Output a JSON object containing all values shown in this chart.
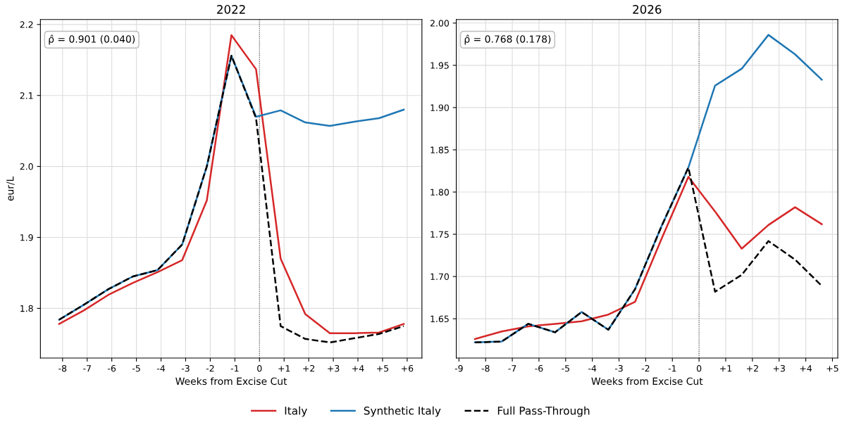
{
  "chart_data": [
    {
      "type": "line",
      "title": "2022",
      "xlabel": "Weeks from Excise Cut",
      "ylabel": "eur/L",
      "annotations": [
        "ρ̂ = 0.901 (0.040)"
      ],
      "xlim": [
        -8.9,
        6.6
      ],
      "ylim": [
        1.73,
        2.207
      ],
      "xticks": [
        -8,
        -7,
        -6,
        -5,
        -4,
        -3,
        -2,
        -1,
        0,
        {
          "value": 1,
          "label": "+1"
        },
        {
          "value": 2,
          "label": "+2"
        },
        {
          "value": 3,
          "label": "+3"
        },
        {
          "value": 4,
          "label": "+4"
        },
        {
          "value": 5,
          "label": "+5"
        },
        {
          "value": 6,
          "label": "+6"
        }
      ],
      "yticks": [
        1.8,
        1.9,
        {
          "value": 2.0,
          "label": "2.0"
        },
        2.1,
        2.2
      ],
      "grid": true,
      "legend": "bottom",
      "ref_lines": [
        {
          "axis": "x",
          "value": 0,
          "color": "#555555",
          "line_style": "dotted"
        }
      ],
      "x": [
        -8.14,
        -7.14,
        -6.14,
        -5.14,
        -4.14,
        -3.14,
        -2.14,
        -1.14,
        -0.14,
        0.86,
        1.86,
        2.86,
        3.86,
        4.86,
        5.86
      ],
      "series": [
        {
          "name": "Italy",
          "color": "#d62728",
          "line_style": "solid",
          "values": [
            1.778,
            1.797,
            1.819,
            1.836,
            1.851,
            1.868,
            1.952,
            2.185,
            2.137,
            1.87,
            1.792,
            1.765,
            1.765,
            1.766,
            1.778
          ]
        },
        {
          "name": "Synthetic Italy",
          "color": "#1f77b4",
          "line_style": "solid",
          "values": [
            1.784,
            1.805,
            1.827,
            1.845,
            1.854,
            1.89,
            2.0,
            2.156,
            2.07,
            2.079,
            2.062,
            2.057,
            2.063,
            2.068,
            2.08
          ]
        },
        {
          "name": "Full Pass-Through",
          "color": "#000000",
          "line_style": "dashed",
          "values": [
            1.784,
            1.805,
            1.827,
            1.845,
            1.854,
            1.89,
            2.0,
            2.156,
            2.068,
            1.775,
            1.757,
            1.752,
            1.758,
            1.764,
            1.775
          ]
        }
      ]
    },
    {
      "type": "line",
      "title": "2026",
      "xlabel": "Weeks from Excise Cut",
      "annotations": [
        "ρ̂ = 0.768 (0.178)"
      ],
      "xlim": [
        -9.1,
        5.2
      ],
      "ylim": [
        1.6035,
        2.0042
      ],
      "xticks": [
        -9,
        -8,
        -7,
        -6,
        -5,
        -4,
        -3,
        -2,
        -1,
        0,
        {
          "value": 1,
          "label": "+1"
        },
        {
          "value": 2,
          "label": "+2"
        },
        {
          "value": 3,
          "label": "+3"
        },
        {
          "value": 4,
          "label": "+4"
        },
        {
          "value": 5,
          "label": "+5"
        }
      ],
      "yticks": [
        {
          "value": 1.65,
          "label": "1.65"
        },
        {
          "value": 1.7,
          "label": "1.70"
        },
        {
          "value": 1.75,
          "label": "1.75"
        },
        {
          "value": 1.8,
          "label": "1.80"
        },
        {
          "value": 1.85,
          "label": "1.85"
        },
        {
          "value": 1.9,
          "label": "1.90"
        },
        {
          "value": 1.95,
          "label": "1.95"
        },
        {
          "value": 2.0,
          "label": "2.00"
        }
      ],
      "grid": true,
      "legend": "bottom",
      "ref_lines": [
        {
          "axis": "x",
          "value": 0,
          "color": "#555555",
          "line_style": "dotted"
        }
      ],
      "x": [
        -8.4,
        -7.4,
        -6.4,
        -5.4,
        -4.4,
        -3.4,
        -2.4,
        -1.4,
        -0.4,
        0.6,
        1.6,
        2.6,
        3.6,
        4.6
      ],
      "series": [
        {
          "name": "Italy",
          "color": "#d62728",
          "line_style": "solid",
          "values": [
            1.626,
            1.635,
            1.641,
            1.644,
            1.647,
            1.655,
            1.67,
            1.745,
            1.818,
            1.777,
            1.733,
            1.761,
            1.782,
            1.762
          ]
        },
        {
          "name": "Synthetic Italy",
          "color": "#1f77b4",
          "line_style": "solid",
          "values": [
            1.622,
            1.623,
            1.644,
            1.634,
            1.658,
            1.637,
            1.685,
            1.76,
            1.829,
            1.926,
            1.946,
            1.986,
            1.963,
            1.933
          ]
        },
        {
          "name": "Full Pass-Through",
          "color": "#000000",
          "line_style": "dashed",
          "values": [
            1.622,
            1.623,
            1.644,
            1.634,
            1.658,
            1.637,
            1.685,
            1.76,
            1.829,
            1.682,
            1.702,
            1.742,
            1.72,
            1.689
          ]
        }
      ]
    }
  ]
}
